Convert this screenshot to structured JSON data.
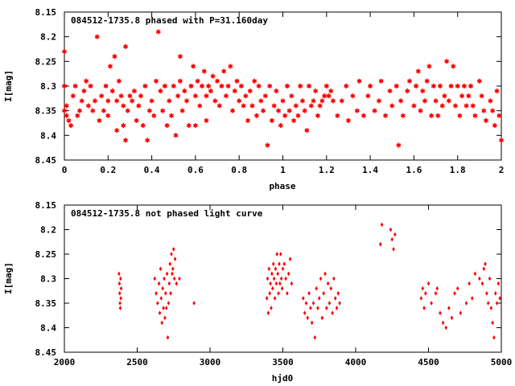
{
  "chart_data": [
    {
      "type": "scatter",
      "title": "084512-1735.8 phased with P=31.160day",
      "xlabel": "phase",
      "ylabel": "I[mag]",
      "xlim": [
        0,
        2
      ],
      "ylim": [
        8.15,
        8.45
      ],
      "y_inverted": true,
      "xticks": [
        "0",
        "0.2",
        "0.4",
        "0.6",
        "0.8",
        "1",
        "1.2",
        "1.4",
        "1.6",
        "1.8",
        "2"
      ],
      "yticks": [
        "8.15",
        "8.2",
        "8.25",
        "8.3",
        "8.35",
        "8.4",
        "8.45"
      ],
      "grid": false,
      "legend": "none",
      "marker": "asterisk",
      "color": "#ff0000",
      "points": [
        [
          0.0,
          8.23
        ],
        [
          0.0,
          8.3
        ],
        [
          0.0,
          8.35
        ],
        [
          0.01,
          8.34
        ],
        [
          0.01,
          8.36
        ],
        [
          0.02,
          8.37
        ],
        [
          0.03,
          8.38
        ],
        [
          0.04,
          8.32
        ],
        [
          0.05,
          8.3
        ],
        [
          0.06,
          8.36
        ],
        [
          0.07,
          8.35
        ],
        [
          0.08,
          8.33
        ],
        [
          0.09,
          8.31
        ],
        [
          0.1,
          8.29
        ],
        [
          0.11,
          8.34
        ],
        [
          0.12,
          8.3
        ],
        [
          0.13,
          8.35
        ],
        [
          0.14,
          8.33
        ],
        [
          0.15,
          8.2
        ],
        [
          0.16,
          8.37
        ],
        [
          0.17,
          8.32
        ],
        [
          0.18,
          8.35
        ],
        [
          0.19,
          8.3
        ],
        [
          0.2,
          8.33
        ],
        [
          0.2,
          8.36
        ],
        [
          0.21,
          8.26
        ],
        [
          0.22,
          8.31
        ],
        [
          0.23,
          8.24
        ],
        [
          0.24,
          8.39
        ],
        [
          0.24,
          8.33
        ],
        [
          0.25,
          8.29
        ],
        [
          0.26,
          8.32
        ],
        [
          0.27,
          8.34
        ],
        [
          0.27,
          8.38
        ],
        [
          0.28,
          8.41
        ],
        [
          0.28,
          8.22
        ],
        [
          0.29,
          8.35
        ],
        [
          0.3,
          8.32
        ],
        [
          0.31,
          8.33
        ],
        [
          0.32,
          8.31
        ],
        [
          0.33,
          8.37
        ],
        [
          0.34,
          8.34
        ],
        [
          0.35,
          8.32
        ],
        [
          0.36,
          8.38
        ],
        [
          0.37,
          8.3
        ],
        [
          0.38,
          8.41
        ],
        [
          0.39,
          8.35
        ],
        [
          0.4,
          8.33
        ],
        [
          0.41,
          8.36
        ],
        [
          0.42,
          8.29
        ],
        [
          0.43,
          8.19
        ],
        [
          0.44,
          8.31
        ],
        [
          0.45,
          8.35
        ],
        [
          0.46,
          8.3
        ],
        [
          0.47,
          8.38
        ],
        [
          0.48,
          8.33
        ],
        [
          0.49,
          8.36
        ],
        [
          0.5,
          8.3
        ],
        [
          0.51,
          8.4
        ],
        [
          0.52,
          8.32
        ],
        [
          0.53,
          8.24
        ],
        [
          0.53,
          8.29
        ],
        [
          0.54,
          8.35
        ],
        [
          0.55,
          8.31
        ],
        [
          0.56,
          8.33
        ],
        [
          0.57,
          8.38
        ],
        [
          0.58,
          8.3
        ],
        [
          0.59,
          8.26
        ],
        [
          0.6,
          8.32
        ],
        [
          0.6,
          8.38
        ],
        [
          0.61,
          8.29
        ],
        [
          0.62,
          8.34
        ],
        [
          0.63,
          8.3
        ],
        [
          0.64,
          8.27
        ],
        [
          0.65,
          8.32
        ],
        [
          0.65,
          8.37
        ],
        [
          0.66,
          8.3
        ],
        [
          0.67,
          8.31
        ],
        [
          0.68,
          8.28
        ],
        [
          0.69,
          8.33
        ],
        [
          0.7,
          8.29
        ],
        [
          0.71,
          8.34
        ],
        [
          0.72,
          8.3
        ],
        [
          0.73,
          8.27
        ],
        [
          0.74,
          8.32
        ],
        [
          0.75,
          8.3
        ],
        [
          0.76,
          8.26
        ],
        [
          0.77,
          8.35
        ],
        [
          0.78,
          8.31
        ],
        [
          0.79,
          8.29
        ],
        [
          0.8,
          8.33
        ],
        [
          0.81,
          8.3
        ],
        [
          0.82,
          8.34
        ],
        [
          0.83,
          8.32
        ],
        [
          0.84,
          8.37
        ],
        [
          0.85,
          8.31
        ],
        [
          0.86,
          8.34
        ],
        [
          0.87,
          8.29
        ],
        [
          0.88,
          8.36
        ],
        [
          0.89,
          8.3
        ],
        [
          0.9,
          8.33
        ],
        [
          0.91,
          8.35
        ],
        [
          0.92,
          8.32
        ],
        [
          0.93,
          8.42
        ],
        [
          0.94,
          8.3
        ],
        [
          0.95,
          8.37
        ],
        [
          0.96,
          8.34
        ],
        [
          0.97,
          8.31
        ],
        [
          0.98,
          8.35
        ],
        [
          0.99,
          8.38
        ],
        [
          1.0,
          8.33
        ],
        [
          1.01,
          8.36
        ],
        [
          1.02,
          8.3
        ],
        [
          1.03,
          8.35
        ],
        [
          1.04,
          8.32
        ],
        [
          1.05,
          8.37
        ],
        [
          1.06,
          8.34
        ],
        [
          1.07,
          8.36
        ],
        [
          1.08,
          8.3
        ],
        [
          1.09,
          8.33
        ],
        [
          1.1,
          8.35
        ],
        [
          1.11,
          8.39
        ],
        [
          1.12,
          8.3
        ],
        [
          1.13,
          8.34
        ],
        [
          1.14,
          8.33
        ],
        [
          1.15,
          8.31
        ],
        [
          1.16,
          8.36
        ],
        [
          1.17,
          8.34
        ],
        [
          1.18,
          8.33
        ],
        [
          1.19,
          8.32
        ],
        [
          1.2,
          8.3
        ],
        [
          1.21,
          8.32
        ],
        [
          1.22,
          8.31
        ],
        [
          1.23,
          8.33
        ],
        [
          1.25,
          8.36
        ],
        [
          1.27,
          8.33
        ],
        [
          1.29,
          8.3
        ],
        [
          1.3,
          8.37
        ],
        [
          1.32,
          8.32
        ],
        [
          1.34,
          8.35
        ],
        [
          1.35,
          8.29
        ],
        [
          1.37,
          8.36
        ],
        [
          1.39,
          8.32
        ],
        [
          1.4,
          8.3
        ],
        [
          1.42,
          8.35
        ],
        [
          1.44,
          8.33
        ],
        [
          1.45,
          8.29
        ],
        [
          1.47,
          8.36
        ],
        [
          1.49,
          8.31
        ],
        [
          1.5,
          8.34
        ],
        [
          1.52,
          8.3
        ],
        [
          1.53,
          8.42
        ],
        [
          1.54,
          8.33
        ],
        [
          1.55,
          8.36
        ],
        [
          1.57,
          8.31
        ],
        [
          1.58,
          8.29
        ],
        [
          1.6,
          8.34
        ],
        [
          1.61,
          8.3
        ],
        [
          1.62,
          8.27
        ],
        [
          1.63,
          8.35
        ],
        [
          1.64,
          8.31
        ],
        [
          1.65,
          8.33
        ],
        [
          1.66,
          8.29
        ],
        [
          1.67,
          8.26
        ],
        [
          1.68,
          8.36
        ],
        [
          1.69,
          8.3
        ],
        [
          1.7,
          8.33
        ],
        [
          1.71,
          8.36
        ],
        [
          1.72,
          8.3
        ],
        [
          1.73,
          8.34
        ],
        [
          1.74,
          8.32
        ],
        [
          1.75,
          8.25
        ],
        [
          1.76,
          8.33
        ],
        [
          1.77,
          8.3
        ],
        [
          1.78,
          8.26
        ],
        [
          1.79,
          8.34
        ],
        [
          1.8,
          8.3
        ],
        [
          1.81,
          8.36
        ],
        [
          1.82,
          8.32
        ],
        [
          1.83,
          8.3
        ],
        [
          1.84,
          8.34
        ],
        [
          1.85,
          8.32
        ],
        [
          1.86,
          8.3
        ],
        [
          1.87,
          8.34
        ],
        [
          1.88,
          8.36
        ],
        [
          1.9,
          8.29
        ],
        [
          1.91,
          8.32
        ],
        [
          1.92,
          8.35
        ],
        [
          1.93,
          8.37
        ],
        [
          1.95,
          8.33
        ],
        [
          1.96,
          8.35
        ],
        [
          1.97,
          8.38
        ],
        [
          1.98,
          8.31
        ],
        [
          1.99,
          8.36
        ],
        [
          2.0,
          8.41
        ]
      ]
    },
    {
      "type": "scatter",
      "title": "084512-1735.8 not phased light curve",
      "xlabel": "hjd0",
      "ylabel": "I[mag]",
      "xlim": [
        2000,
        5000
      ],
      "ylim": [
        8.15,
        8.45
      ],
      "y_inverted": true,
      "xticks": [
        "2000",
        "2500",
        "3000",
        "3500",
        "4000",
        "4500",
        "5000"
      ],
      "yticks": [
        "8.15",
        "8.2",
        "8.25",
        "8.3",
        "8.35",
        "8.4",
        "8.45"
      ],
      "grid": false,
      "legend": "none",
      "marker": "diamond",
      "color": "#ff0000",
      "points": [
        [
          2375,
          8.29
        ],
        [
          2378,
          8.31
        ],
        [
          2380,
          8.33
        ],
        [
          2382,
          8.35
        ],
        [
          2384,
          8.36
        ],
        [
          2386,
          8.3
        ],
        [
          2388,
          8.34
        ],
        [
          2390,
          8.32
        ],
        [
          2620,
          8.3
        ],
        [
          2630,
          8.33
        ],
        [
          2640,
          8.35
        ],
        [
          2650,
          8.31
        ],
        [
          2655,
          8.37
        ],
        [
          2660,
          8.28
        ],
        [
          2665,
          8.34
        ],
        [
          2670,
          8.39
        ],
        [
          2675,
          8.32
        ],
        [
          2680,
          8.36
        ],
        [
          2685,
          8.3
        ],
        [
          2690,
          8.38
        ],
        [
          2695,
          8.33
        ],
        [
          2700,
          8.36
        ],
        [
          2705,
          8.29
        ],
        [
          2710,
          8.42
        ],
        [
          2715,
          8.35
        ],
        [
          2720,
          8.31
        ],
        [
          2725,
          8.27
        ],
        [
          2730,
          8.33
        ],
        [
          2735,
          8.25
        ],
        [
          2740,
          8.29
        ],
        [
          2745,
          8.28
        ],
        [
          2750,
          8.24
        ],
        [
          2755,
          8.3
        ],
        [
          2760,
          8.26
        ],
        [
          2770,
          8.31
        ],
        [
          2790,
          8.3
        ],
        [
          2890,
          8.35
        ],
        [
          3390,
          8.34
        ],
        [
          3395,
          8.3
        ],
        [
          3400,
          8.37
        ],
        [
          3405,
          8.28
        ],
        [
          3410,
          8.33
        ],
        [
          3415,
          8.31
        ],
        [
          3420,
          8.36
        ],
        [
          3425,
          8.29
        ],
        [
          3430,
          8.32
        ],
        [
          3435,
          8.27
        ],
        [
          3440,
          8.3
        ],
        [
          3445,
          8.34
        ],
        [
          3450,
          8.28
        ],
        [
          3455,
          8.31
        ],
        [
          3460,
          8.25
        ],
        [
          3465,
          8.29
        ],
        [
          3470,
          8.33
        ],
        [
          3475,
          8.27
        ],
        [
          3480,
          8.31
        ],
        [
          3485,
          8.25
        ],
        [
          3490,
          8.3
        ],
        [
          3495,
          8.32
        ],
        [
          3500,
          8.28
        ],
        [
          3510,
          8.27
        ],
        [
          3520,
          8.3
        ],
        [
          3530,
          8.33
        ],
        [
          3540,
          8.29
        ],
        [
          3550,
          8.26
        ],
        [
          3560,
          8.31
        ],
        [
          3640,
          8.34
        ],
        [
          3650,
          8.37
        ],
        [
          3660,
          8.35
        ],
        [
          3670,
          8.38
        ],
        [
          3680,
          8.33
        ],
        [
          3690,
          8.36
        ],
        [
          3700,
          8.39
        ],
        [
          3710,
          8.35
        ],
        [
          3720,
          8.42
        ],
        [
          3730,
          8.32
        ],
        [
          3740,
          8.36
        ],
        [
          3750,
          8.34
        ],
        [
          3760,
          8.3
        ],
        [
          3770,
          8.38
        ],
        [
          3780,
          8.33
        ],
        [
          3790,
          8.29
        ],
        [
          3800,
          8.36
        ],
        [
          3810,
          8.31
        ],
        [
          3820,
          8.35
        ],
        [
          3830,
          8.32
        ],
        [
          3840,
          8.37
        ],
        [
          3850,
          8.3
        ],
        [
          3860,
          8.34
        ],
        [
          3870,
          8.36
        ],
        [
          3880,
          8.33
        ],
        [
          3890,
          8.35
        ],
        [
          4170,
          8.23
        ],
        [
          4180,
          8.19
        ],
        [
          4240,
          8.2
        ],
        [
          4250,
          8.22
        ],
        [
          4260,
          8.24
        ],
        [
          4270,
          8.21
        ],
        [
          4450,
          8.34
        ],
        [
          4460,
          8.32
        ],
        [
          4470,
          8.36
        ],
        [
          4480,
          8.33
        ],
        [
          4500,
          8.31
        ],
        [
          4520,
          8.35
        ],
        [
          4550,
          8.33
        ],
        [
          4560,
          8.32
        ],
        [
          4580,
          8.37
        ],
        [
          4600,
          8.39
        ],
        [
          4620,
          8.4
        ],
        [
          4640,
          8.36
        ],
        [
          4660,
          8.38
        ],
        [
          4680,
          8.33
        ],
        [
          4700,
          8.32
        ],
        [
          4720,
          8.37
        ],
        [
          4760,
          8.35
        ],
        [
          4780,
          8.31
        ],
        [
          4800,
          8.34
        ],
        [
          4820,
          8.29
        ],
        [
          4850,
          8.3
        ],
        [
          4870,
          8.31
        ],
        [
          4880,
          8.28
        ],
        [
          4890,
          8.27
        ],
        [
          4900,
          8.33
        ],
        [
          4910,
          8.35
        ],
        [
          4920,
          8.3
        ],
        [
          4930,
          8.36
        ],
        [
          4940,
          8.39
        ],
        [
          4950,
          8.42
        ],
        [
          4960,
          8.33
        ],
        [
          4970,
          8.35
        ],
        [
          4980,
          8.31
        ],
        [
          4990,
          8.34
        ]
      ]
    }
  ]
}
